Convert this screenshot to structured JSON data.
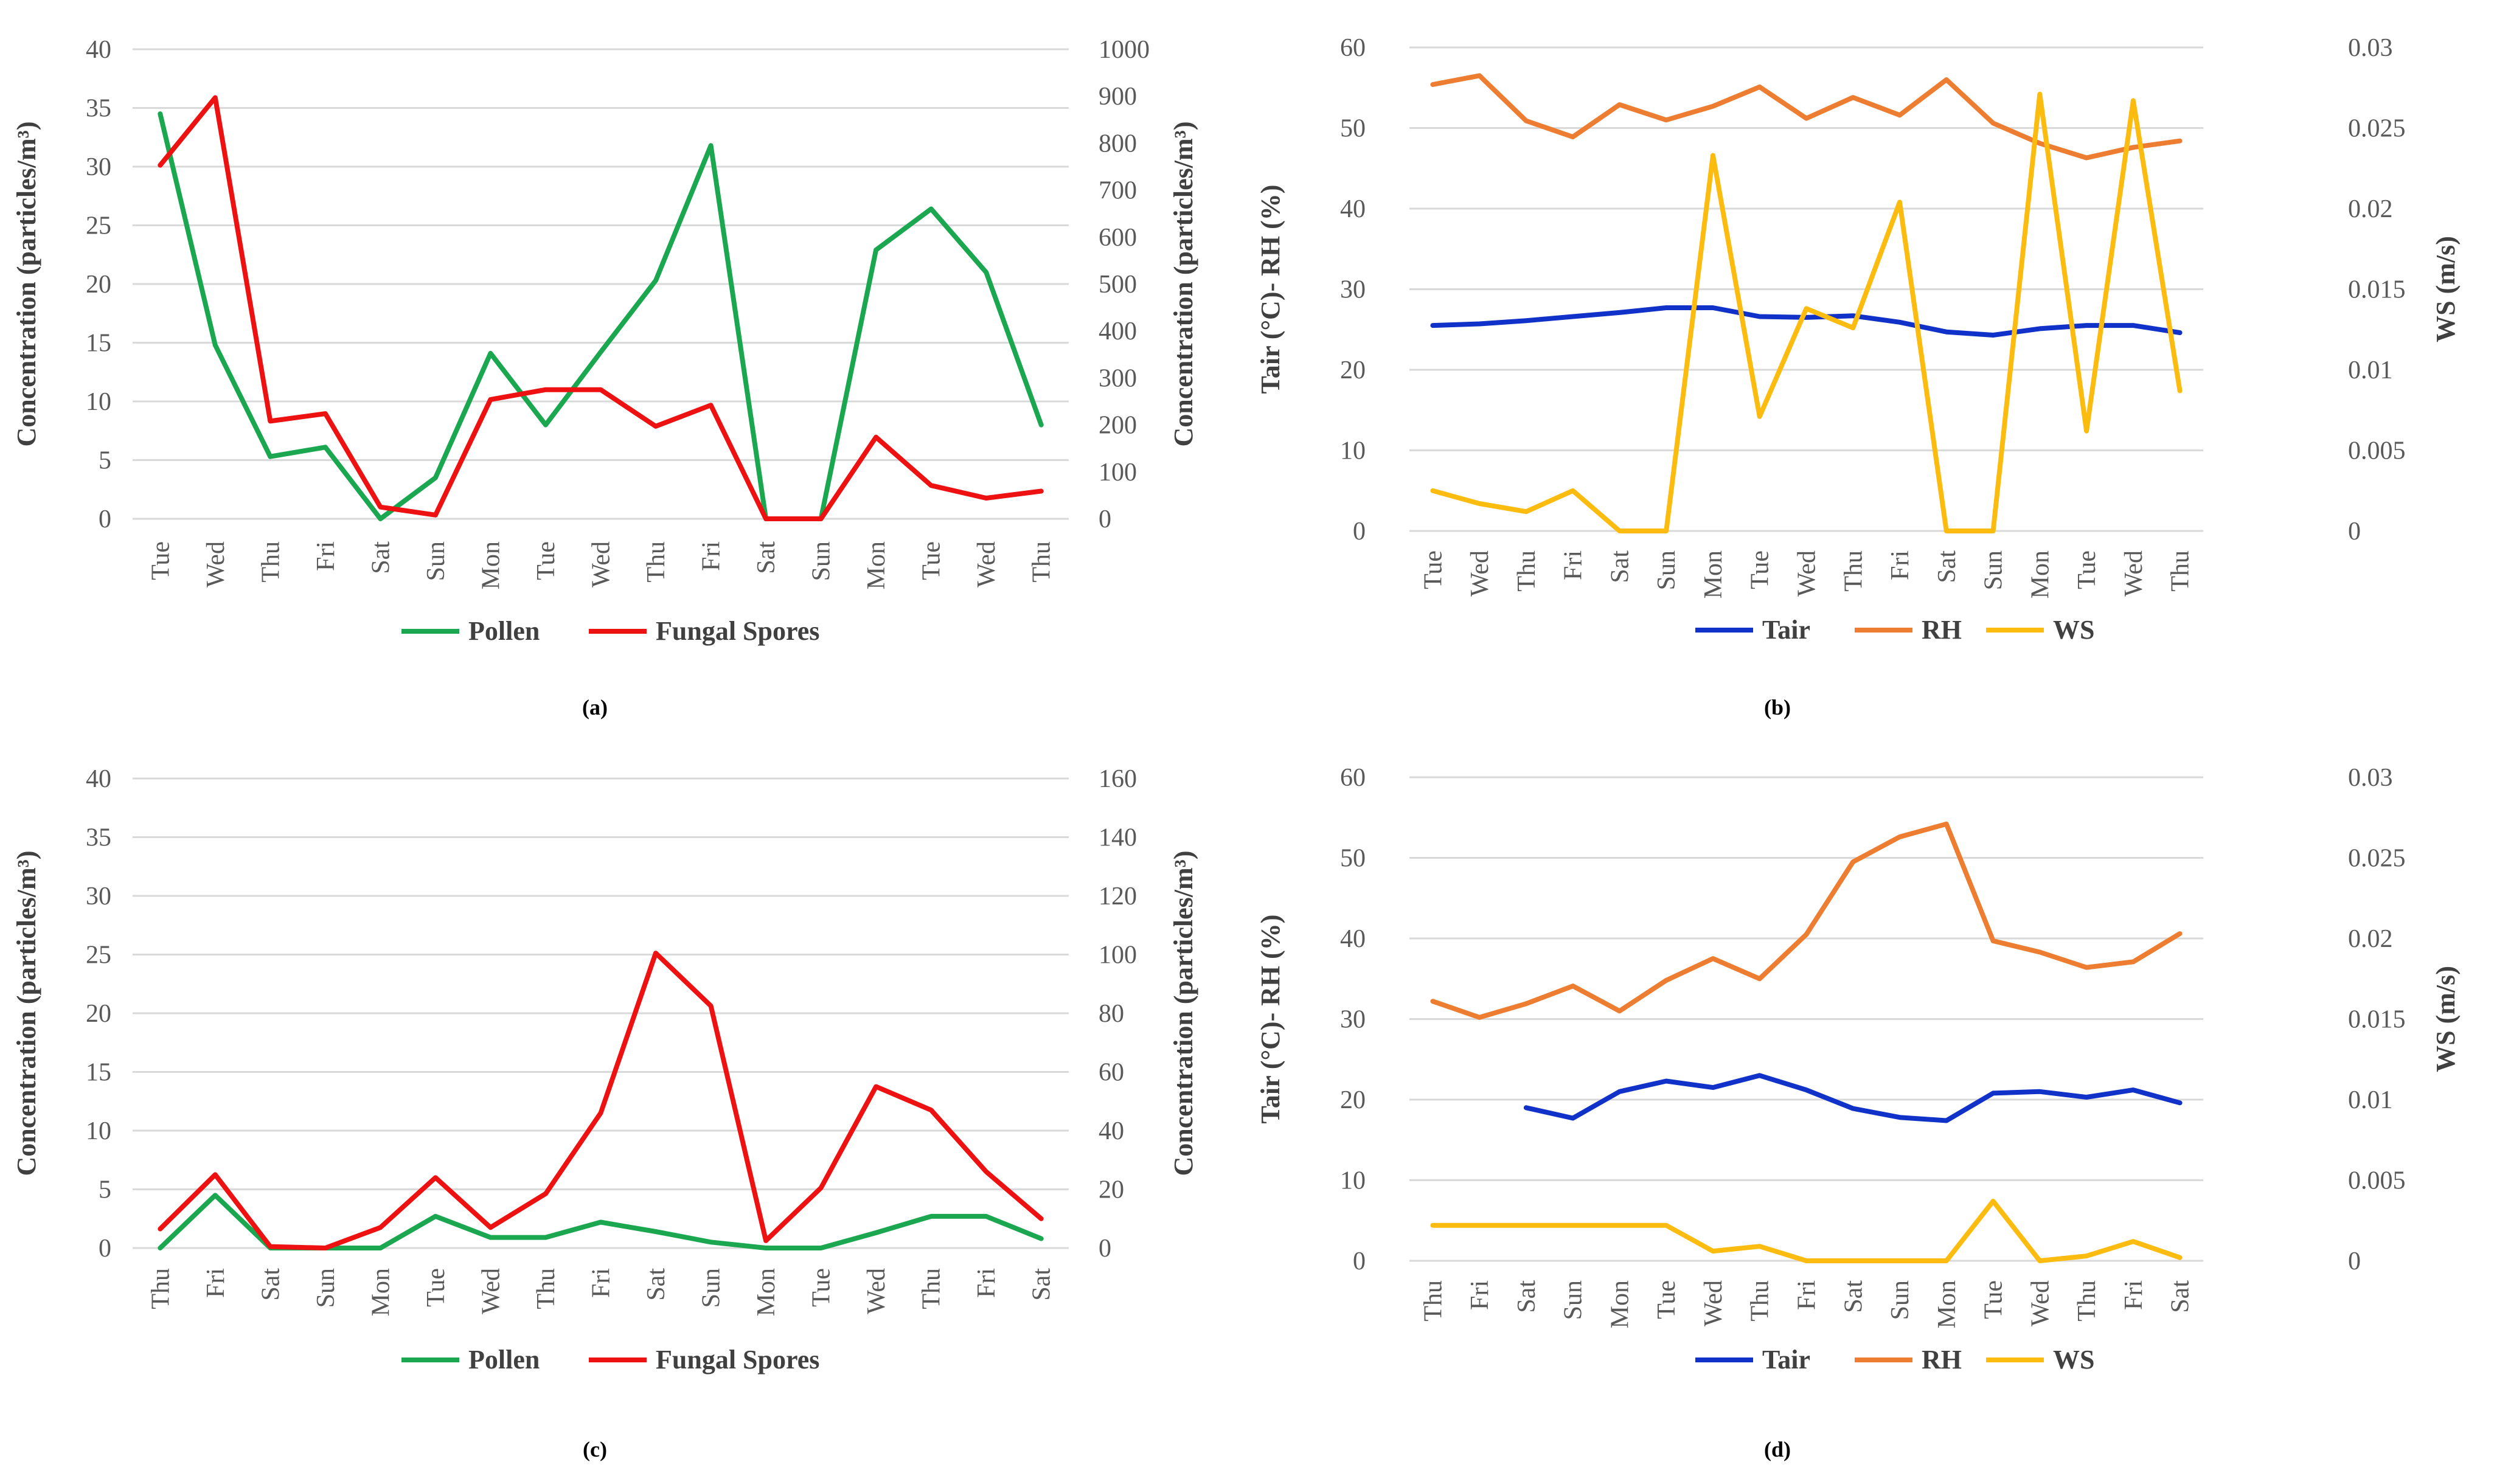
{
  "chart_data": [
    {
      "id": "a",
      "type": "line",
      "panel_label": "(a)",
      "categories": [
        "Tue",
        "Wed",
        "Thu",
        "Fri",
        "Sat",
        "Sun",
        "Mon",
        "Tue",
        "Wed",
        "Thu",
        "Fri",
        "Sat",
        "Sun",
        "Mon",
        "Tue",
        "Wed",
        "Thu"
      ],
      "left_axis": {
        "title": "Concentration (particles/m³)",
        "min": 0,
        "max": 40,
        "step": 5,
        "ticks": [
          "0",
          "5",
          "10",
          "15",
          "20",
          "25",
          "30",
          "35",
          "40"
        ]
      },
      "right_axis": {
        "title": "Concentration (particles/m³)",
        "min": 0,
        "max": 1000,
        "step": 100,
        "ticks": [
          "0",
          "100",
          "200",
          "300",
          "400",
          "500",
          "600",
          "700",
          "800",
          "900",
          "1000"
        ]
      },
      "series": [
        {
          "name": "Pollen",
          "axis": "left",
          "color": "#1aa750",
          "values": [
            34.5,
            14.8,
            5.3,
            6.1,
            0,
            3.5,
            14.1,
            8.0,
            14.2,
            20.3,
            31.8,
            0,
            0,
            22.9,
            26.4,
            21.0,
            8.0
          ]
        },
        {
          "name": "Fungal Spores",
          "axis": "right",
          "color": "#ee1111",
          "values": [
            753,
            897,
            208,
            224,
            25,
            8,
            254,
            275,
            275,
            197,
            242,
            0,
            0,
            174,
            71,
            44,
            59
          ]
        }
      ]
    },
    {
      "id": "b",
      "type": "line",
      "panel_label": "(b)",
      "categories": [
        "Tue",
        "Wed",
        "Thu",
        "Fri",
        "Sat",
        "Sun",
        "Mon",
        "Tue",
        "Wed",
        "Thu",
        "Fri",
        "Sat",
        "Sun",
        "Mon",
        "Tue",
        "Wed",
        "Thu"
      ],
      "left_axis": {
        "title": "Tair (°C)- RH (%)",
        "min": 0,
        "max": 60,
        "step": 10,
        "ticks": [
          "0",
          "10",
          "20",
          "30",
          "40",
          "50",
          "60"
        ]
      },
      "right_axis": {
        "title": "WS (m/s)",
        "min": 0,
        "max": 0.03,
        "step": 0.005,
        "ticks": [
          "0",
          "0.005",
          "0.01",
          "0.015",
          "0.02",
          "0.025",
          "0.03"
        ]
      },
      "series": [
        {
          "name": "Tair",
          "axis": "left",
          "color": "#1132c8",
          "values": [
            25.5,
            25.7,
            26.1,
            26.6,
            27.1,
            27.7,
            27.7,
            26.6,
            26.5,
            26.7,
            25.9,
            24.7,
            24.3,
            25.1,
            25.5,
            25.5,
            24.6
          ]
        },
        {
          "name": "RH",
          "axis": "left",
          "color": "#ed7d31",
          "values": [
            55.4,
            56.5,
            50.9,
            48.9,
            52.9,
            51.0,
            52.7,
            55.1,
            51.2,
            53.8,
            51.6,
            56.0,
            50.6,
            48.1,
            46.3,
            47.6,
            48.4
          ]
        },
        {
          "name": "WS",
          "axis": "right",
          "color": "#fcbc0f",
          "values": [
            0.0025,
            0.0017,
            0.0012,
            0.0025,
            0,
            0,
            0.0233,
            0.0071,
            0.0138,
            0.0126,
            0.0204,
            0,
            0,
            0.0271,
            0.0062,
            0.0267,
            0.0087
          ]
        }
      ]
    },
    {
      "id": "c",
      "type": "line",
      "panel_label": "(c)",
      "categories": [
        "Thu",
        "Fri",
        "Sat",
        "Sun",
        "Mon",
        "Tue",
        "Wed",
        "Thu",
        "Fri",
        "Sat",
        "Sun",
        "Mon",
        "Tue",
        "Wed",
        "Thu",
        "Fri",
        "Sat"
      ],
      "left_axis": {
        "title": "Concentration (particles/m³)",
        "min": 0,
        "max": 40,
        "step": 5,
        "ticks": [
          "0",
          "5",
          "10",
          "15",
          "20",
          "25",
          "30",
          "35",
          "40"
        ]
      },
      "right_axis": {
        "title": "Concentration (particles/m³)",
        "min": 0,
        "max": 160,
        "step": 20,
        "ticks": [
          "0",
          "20",
          "40",
          "60",
          "80",
          "100",
          "120",
          "140",
          "160"
        ]
      },
      "series": [
        {
          "name": "Pollen",
          "axis": "left",
          "color": "#1aa750",
          "values": [
            0,
            4.5,
            0,
            0,
            0,
            2.7,
            0.9,
            0.9,
            2.2,
            1.4,
            0.5,
            0,
            0,
            1.3,
            2.7,
            2.7,
            0.8
          ]
        },
        {
          "name": "Fungal Spores",
          "axis": "right",
          "color": "#ee1111",
          "values": [
            6.5,
            25,
            0.5,
            0,
            7,
            24,
            7,
            18.5,
            46,
            100.5,
            82.5,
            2.5,
            20.5,
            55,
            47,
            26,
            10
          ]
        }
      ]
    },
    {
      "id": "d",
      "type": "line",
      "panel_label": "(d)",
      "categories": [
        "Thu",
        "Fri",
        "Sat",
        "Sun",
        "Mon",
        "Tue",
        "Wed",
        "Thu",
        "Fri",
        "Sat",
        "Sun",
        "Mon",
        "Tue",
        "Wed",
        "Thu",
        "Fri",
        "Sat"
      ],
      "left_axis": {
        "title": "Tair (°C)- RH (%)",
        "min": 0,
        "max": 60,
        "step": 10,
        "ticks": [
          "0",
          "10",
          "20",
          "30",
          "40",
          "50",
          "60"
        ]
      },
      "right_axis": {
        "title": "WS (m/s)",
        "min": 0,
        "max": 0.03,
        "step": 0.005,
        "ticks": [
          "0",
          "0.005",
          "0.01",
          "0.015",
          "0.02",
          "0.025",
          "0.03"
        ]
      },
      "series": [
        {
          "name": "Tair",
          "axis": "left",
          "color": "#1132c8",
          "values": [
            null,
            null,
            19.0,
            17.7,
            21.0,
            22.3,
            21.5,
            23.0,
            21.2,
            18.9,
            17.8,
            17.4,
            20.8,
            21.0,
            20.3,
            21.2,
            19.6
          ]
        },
        {
          "name": "RH",
          "axis": "left",
          "color": "#ed7d31",
          "values": [
            32.2,
            30.2,
            31.9,
            34.1,
            31.0,
            34.8,
            37.5,
            35.0,
            40.5,
            49.5,
            52.6,
            54.2,
            39.7,
            38.3,
            36.4,
            37.1,
            40.6
          ]
        },
        {
          "name": "WS",
          "axis": "right",
          "color": "#fcbc0f",
          "values": [
            0.0022,
            0.0022,
            0.0022,
            0.0022,
            0.0022,
            0.0022,
            0.0006,
            0.0009,
            0,
            0,
            0,
            0,
            0.0037,
            0,
            0.0003,
            0.0012,
            0.0002
          ]
        }
      ]
    }
  ]
}
